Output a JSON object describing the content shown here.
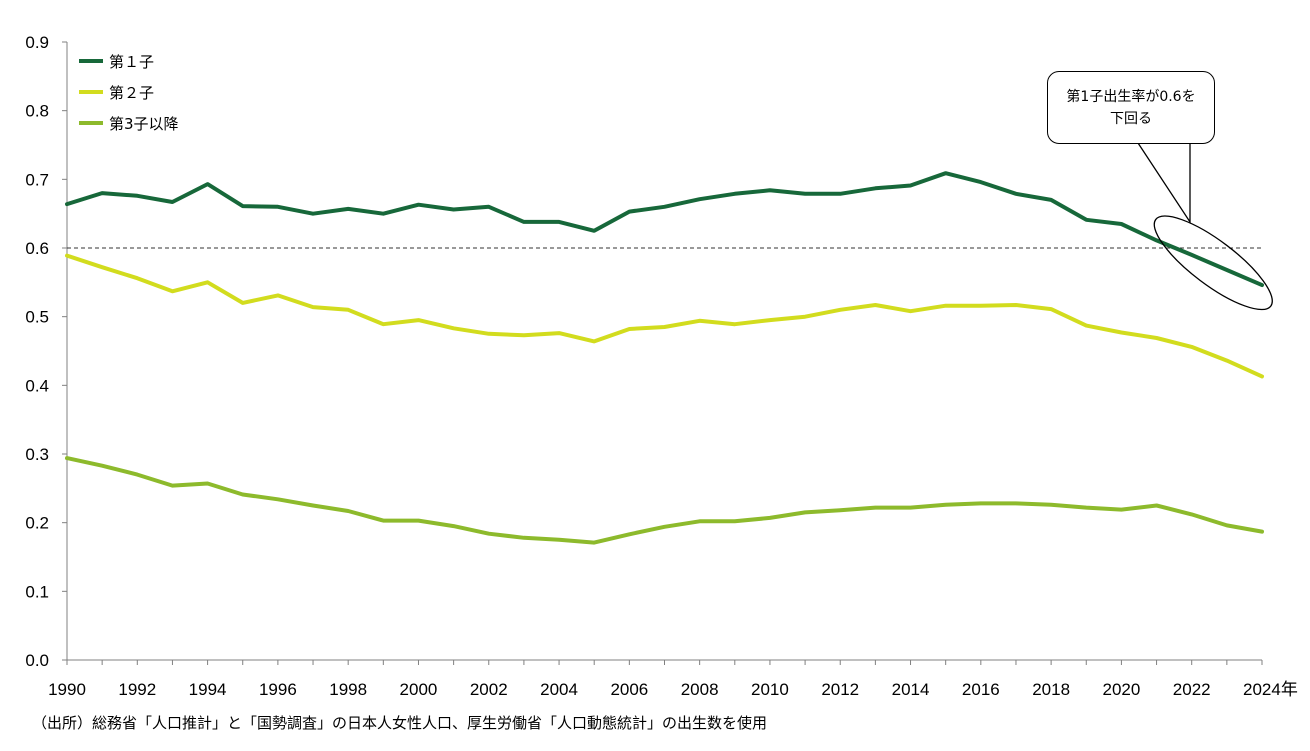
{
  "chart_data": {
    "type": "line",
    "x": [
      1990,
      1991,
      1992,
      1993,
      1994,
      1995,
      1996,
      1997,
      1998,
      1999,
      2000,
      2001,
      2002,
      2003,
      2004,
      2005,
      2006,
      2007,
      2008,
      2009,
      2010,
      2011,
      2012,
      2013,
      2014,
      2015,
      2016,
      2017,
      2018,
      2019,
      2020,
      2021,
      2022,
      2023,
      2024
    ],
    "x_tick_labels": [
      "1990",
      "1992",
      "1994",
      "1996",
      "1998",
      "2000",
      "2002",
      "2004",
      "2006",
      "2008",
      "2010",
      "2012",
      "2014",
      "2016",
      "2018",
      "2020",
      "2022",
      "2024年"
    ],
    "xlim": [
      1990,
      2024
    ],
    "ylim": [
      0,
      0.9
    ],
    "y_tick_labels": [
      "0.0",
      "0.1",
      "0.2",
      "0.3",
      "0.4",
      "0.5",
      "0.6",
      "0.7",
      "0.8",
      "0.9"
    ],
    "grid": false,
    "legend_position": "top-left",
    "reference_line": {
      "y": 0.6,
      "style": "dashed"
    },
    "series": [
      {
        "name": "第１子",
        "color": "#17683A",
        "values": [
          0.664,
          0.68,
          0.676,
          0.667,
          0.693,
          0.661,
          0.66,
          0.65,
          0.657,
          0.65,
          0.663,
          0.656,
          0.66,
          0.638,
          0.638,
          0.625,
          0.653,
          0.66,
          0.671,
          0.679,
          0.684,
          0.679,
          0.679,
          0.687,
          0.691,
          0.709,
          0.696,
          0.679,
          0.67,
          0.641,
          0.635,
          0.611,
          0.59,
          0.568,
          0.546
        ]
      },
      {
        "name": "第２子",
        "color": "#D2DC1E",
        "values": [
          0.589,
          0.572,
          0.556,
          0.537,
          0.55,
          0.52,
          0.531,
          0.514,
          0.51,
          0.489,
          0.495,
          0.483,
          0.475,
          0.473,
          0.476,
          0.464,
          0.482,
          0.485,
          0.494,
          0.489,
          0.495,
          0.5,
          0.51,
          0.517,
          0.508,
          0.516,
          0.516,
          0.517,
          0.511,
          0.487,
          0.477,
          0.469,
          0.456,
          0.436,
          0.413
        ]
      },
      {
        "name": "第3子以降",
        "color": "#8DBA2C",
        "values": [
          0.294,
          0.283,
          0.27,
          0.254,
          0.257,
          0.241,
          0.234,
          0.225,
          0.217,
          0.203,
          0.203,
          0.195,
          0.184,
          0.178,
          0.175,
          0.171,
          0.183,
          0.194,
          0.202,
          0.202,
          0.207,
          0.215,
          0.218,
          0.222,
          0.222,
          0.226,
          0.228,
          0.228,
          0.226,
          0.222,
          0.219,
          0.225,
          0.212,
          0.196,
          0.187
        ]
      }
    ],
    "annotations": [
      {
        "text_lines": [
          "第1子出生率が0.6を",
          "下回る"
        ]
      }
    ],
    "source_note": "（出所）総務省「人口推計」と「国勢調査」の日本人女性人口、厚生労働省「人口動態統計」の出生数を使用"
  }
}
